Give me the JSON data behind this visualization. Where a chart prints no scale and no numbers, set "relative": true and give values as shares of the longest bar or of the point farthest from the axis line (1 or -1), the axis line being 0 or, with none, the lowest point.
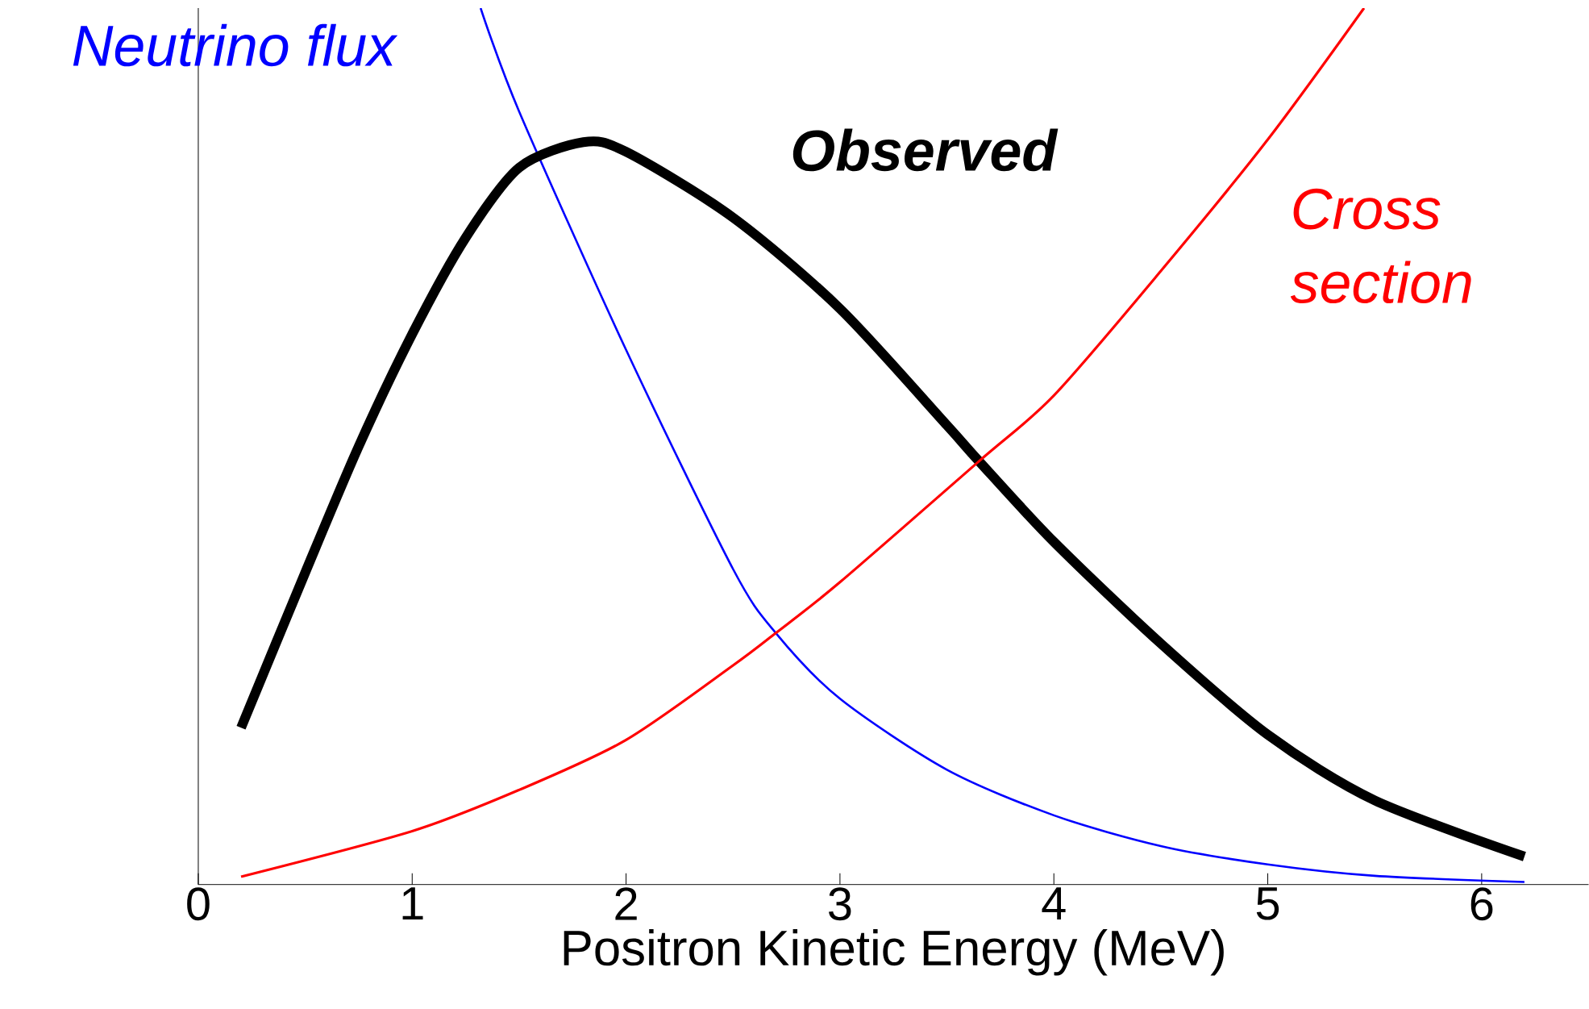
{
  "chart_data": {
    "type": "line",
    "xlabel": "Positron Kinetic Energy (MeV)",
    "relative": true,
    "xlim": [
      0,
      6.5
    ],
    "xticks": [
      0,
      1,
      2,
      3,
      4,
      5,
      6
    ],
    "grid": false,
    "marker": "none",
    "line_style": "solid",
    "series": [
      {
        "name": "Neutrino flux",
        "color": "#0000ff",
        "x": [
          1.32,
          1.5,
          2.0,
          2.5,
          2.7,
          3.0,
          3.5,
          4.0,
          4.5,
          5.0,
          5.5,
          6.2
        ],
        "values": [
          1.0,
          0.882,
          0.61,
          0.36,
          0.287,
          0.212,
          0.131,
          0.079,
          0.044,
          0.023,
          0.01,
          0.003
        ]
      },
      {
        "name": "Observed",
        "color": "#000000",
        "x": [
          0.2,
          0.5,
          0.75,
          1.0,
          1.25,
          1.5,
          1.8,
          2.0,
          2.5,
          3.0,
          3.5,
          3.65,
          4.0,
          4.5,
          5.0,
          5.5,
          6.2
        ],
        "values": [
          0.179,
          0.356,
          0.5,
          0.628,
          0.738,
          0.818,
          0.847,
          0.836,
          0.761,
          0.657,
          0.524,
          0.483,
          0.391,
          0.275,
          0.171,
          0.096,
          0.032
        ]
      },
      {
        "name": "Cross section",
        "color": "#ff0000",
        "x": [
          0.2,
          1.0,
          1.5,
          2.0,
          2.5,
          2.7,
          3.0,
          3.65,
          4.0,
          4.5,
          5.0,
          5.45
        ],
        "values": [
          0.009,
          0.061,
          0.108,
          0.165,
          0.25,
          0.287,
          0.345,
          0.483,
          0.558,
          0.7,
          0.85,
          1.0
        ]
      }
    ]
  }
}
